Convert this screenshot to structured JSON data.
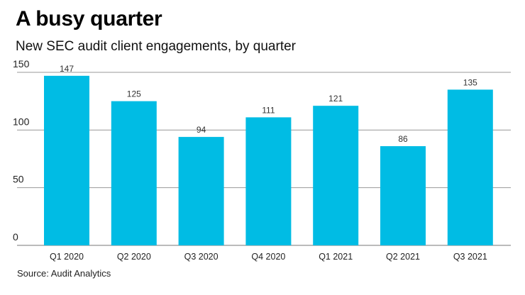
{
  "chart_data": {
    "type": "bar",
    "title": "A busy quarter",
    "subtitle": "New SEC audit client engagements, by quarter",
    "categories": [
      "Q1 2020",
      "Q2 2020",
      "Q3 2020",
      "Q4 2020",
      "Q1 2021",
      "Q2 2021",
      "Q3 2021"
    ],
    "values": [
      147,
      125,
      94,
      111,
      121,
      86,
      135
    ],
    "xlabel": "",
    "ylabel": "",
    "ylim": [
      0,
      150
    ],
    "yticks": [
      0,
      50,
      100,
      150
    ],
    "grid": true,
    "data_labels": true,
    "bar_color": "#00BCE4",
    "source": "Source: Audit Analytics"
  }
}
